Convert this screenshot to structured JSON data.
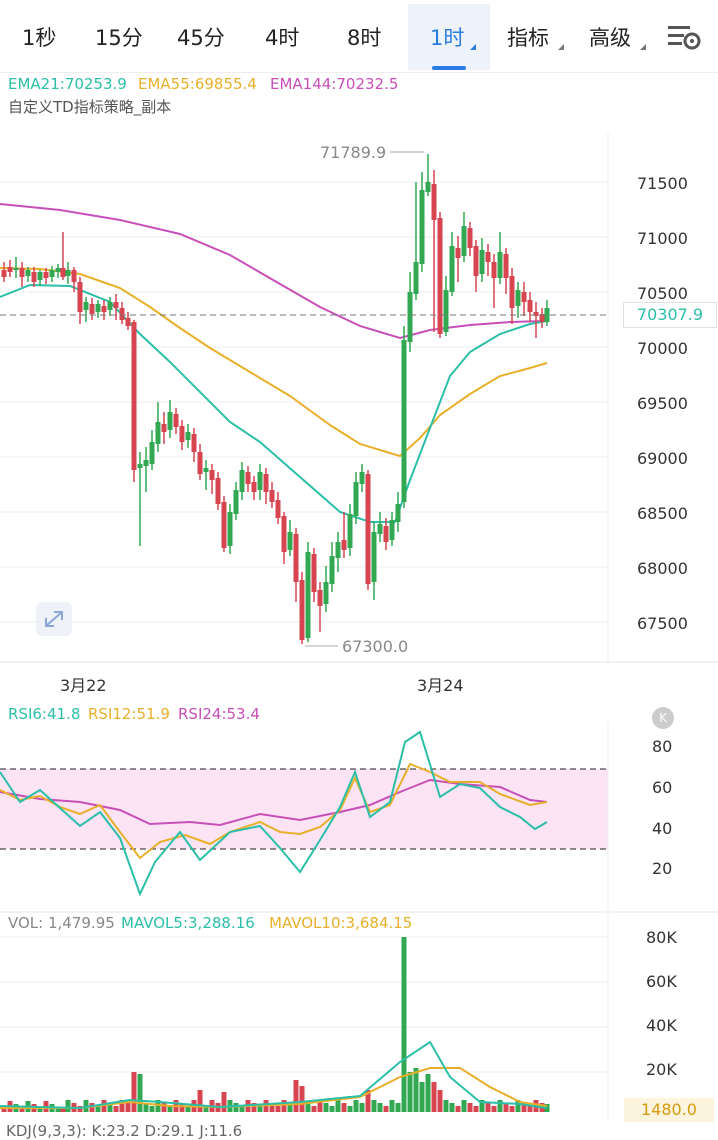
{
  "timeframes": [
    "1秒",
    "15分",
    "45分",
    "4时",
    "8时",
    "1时",
    "指标",
    "高级"
  ],
  "active_timeframe": "1时",
  "main_indicator": {
    "ema21": "EMA21:70253.9",
    "ema55": "EMA55:69855.4",
    "ema144": "EMA144:70232.5",
    "strategy": "自定义TD指标策略_副本"
  },
  "price_axis": [
    "71500",
    "71000",
    "70500",
    "70000",
    "69500",
    "69000",
    "68500",
    "68000",
    "67500"
  ],
  "current_price": "70307.9",
  "high_marker": "71789.9",
  "low_marker": "67300.0",
  "dates": [
    "3月22",
    "3月24"
  ],
  "rsi": {
    "rsi6": "RSI6:41.8",
    "rsi12": "RSI12:51.9",
    "rsi24": "RSI24:53.4",
    "axis": [
      "80",
      "60",
      "40",
      "20"
    ]
  },
  "vol": {
    "vol": "VOL: 1,479.95",
    "mavol5": "MAVOL5:3,288.16",
    "mavol10": "MAVOL10:3,684.15",
    "axis": [
      "80K",
      "60K",
      "40K",
      "20K"
    ],
    "current": "1480.0"
  },
  "kdj": "KDJ(9,3,3): K:23.2  D:29.1  J:11.6",
  "colors": {
    "up": "#33a853",
    "down": "#d64550",
    "ema21": "#2bbfa7",
    "ema55": "#e8b02a",
    "ema144": "#c94fb8",
    "accent": "#2a7be4"
  }
}
